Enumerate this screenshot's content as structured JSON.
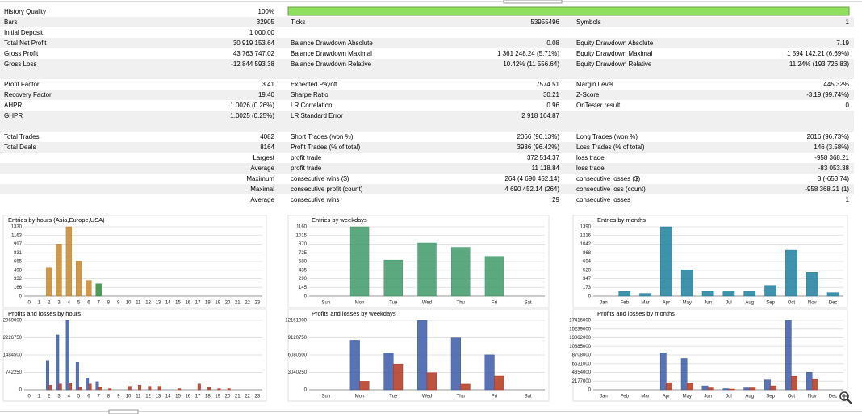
{
  "table": {
    "sections": [
      [
        [
          "History Quality",
          "100%",
          null,
          null,
          null,
          null
        ],
        [
          "Bars",
          "32905",
          "Ticks",
          "53955496",
          "Symbols",
          "1"
        ],
        [
          "Initial Deposit",
          "1 000.00",
          null,
          null,
          null,
          null
        ],
        [
          "Total Net Profit",
          "30 919 153.64",
          "Balance Drawdown Absolute",
          "0.08",
          "Equity Drawdown Absolute",
          "7.19"
        ],
        [
          "Gross Profit",
          "43 763 747.02",
          "Balance Drawdown Maximal",
          "1 361 248.24 (5.71%)",
          "Equity Drawdown Maximal",
          "1 594 142.21 (6.69%)"
        ],
        [
          "Gross Loss",
          "-12 844 593.38",
          "Balance Drawdown Relative",
          "10.42% (11 556.64)",
          "Equity Drawdown Relative",
          "11.24% (193 726.83)"
        ]
      ],
      [
        [
          "Profit Factor",
          "3.41",
          "Expected Payoff",
          "7574.51",
          "Margin Level",
          "445.32%"
        ],
        [
          "Recovery Factor",
          "19.40",
          "Sharpe Ratio",
          "30.21",
          "Z-Score",
          "-3.19 (99.74%)"
        ],
        [
          "AHPR",
          "1.0026 (0.26%)",
          "LR Correlation",
          "0.96",
          "OnTester result",
          "0"
        ],
        [
          "GHPR",
          "1.0025 (0.25%)",
          "LR Standard Error",
          "2 918 164.87",
          null,
          null
        ]
      ],
      [
        [
          "Total Trades",
          "4082",
          "Short Trades (won %)",
          "2066 (96.13%)",
          "Long Trades (won %)",
          "2016 (96.73%)"
        ],
        [
          "Total Deals",
          "8164",
          "Profit Trades (% of total)",
          "3936 (96.42%)",
          "Loss Trades (% of total)",
          "146 (3.58%)"
        ],
        [
          null,
          "Largest",
          "profit trade",
          "372 514.37",
          "loss trade",
          "-958 368.21"
        ],
        [
          null,
          "Average",
          "profit trade",
          "11 118.84",
          "loss trade",
          "-83 053.38"
        ],
        [
          null,
          "Maximum",
          "consecutive wins ($)",
          "264 (4 690 452.14)",
          "consecutive losses ($)",
          "3 (-653.74)"
        ],
        [
          null,
          "Maximal",
          "consecutive profit (count)",
          "4 690 452.14 (264)",
          "consecutive loss (count)",
          "-958 368.21 (1)"
        ],
        [
          null,
          "Average",
          "consecutive wins",
          "29",
          "consecutive losses",
          "1"
        ]
      ]
    ]
  },
  "charts": [
    {
      "title": "Entries by hours (Asia,Europe,USA)",
      "categories": [
        0,
        1,
        2,
        3,
        4,
        5,
        6,
        7,
        8,
        9,
        10,
        11,
        12,
        13,
        14,
        15,
        16,
        17,
        18,
        19,
        20,
        21,
        22,
        23
      ],
      "ylim": [
        0,
        1330
      ],
      "yticks": [
        0,
        166,
        332,
        498,
        665,
        831,
        997,
        1163,
        1330
      ],
      "series": [
        {
          "values": [
            0,
            0,
            545,
            1000,
            1330,
            670,
            300,
            235,
            0,
            0,
            0,
            0,
            0,
            0,
            0,
            0,
            0,
            0,
            0,
            0,
            0,
            0,
            0,
            0
          ],
          "colors": [
            "#c8862a",
            "#c8862a",
            "#c8862a",
            "#c8862a",
            "#c8862a",
            "#c8862a",
            "#c8862a",
            "#2e8b3a",
            "#2e8b3a",
            "#2e8b3a",
            "#2e8b3a",
            "#2e8b3a",
            "#2e8b3a",
            "#2e8b3a",
            "#2e8b3a",
            "#2e8b3a",
            "#3a5ba8",
            "#3a5ba8",
            "#3a5ba8",
            "#3a5ba8",
            "#3a5ba8",
            "#3a5ba8",
            "#3a5ba8",
            "#3a5ba8"
          ]
        }
      ]
    },
    {
      "title": "Entries by weekdays",
      "categories": [
        "Sun",
        "Mon",
        "Tue",
        "Wed",
        "Thu",
        "Fri",
        "Sat"
      ],
      "ylim": [
        0,
        1160
      ],
      "yticks": [
        0,
        145,
        290,
        435,
        580,
        725,
        870,
        1015,
        1160
      ],
      "series": [
        {
          "color": "#3f9a68",
          "values": [
            0,
            1160,
            605,
            890,
            815,
            665,
            0
          ]
        }
      ]
    },
    {
      "title": "Entries by months",
      "categories": [
        "Jan",
        "Feb",
        "Mar",
        "Apr",
        "May",
        "Jun",
        "Jul",
        "Aug",
        "Sep",
        "Oct",
        "Nov",
        "Dec"
      ],
      "ylim": [
        0,
        1390
      ],
      "yticks": [
        0,
        173,
        347,
        520,
        694,
        868,
        1042,
        1216,
        1390
      ],
      "series": [
        {
          "color": "#1d7f9c",
          "values": [
            0,
            95,
            55,
            1390,
            530,
            95,
            90,
            105,
            215,
            920,
            480,
            70
          ]
        }
      ]
    },
    {
      "title": "Profits and losses by hours",
      "categories": [
        0,
        1,
        2,
        3,
        4,
        5,
        6,
        7,
        8,
        9,
        10,
        11,
        12,
        13,
        14,
        15,
        16,
        17,
        18,
        19,
        20,
        21,
        22,
        23
      ],
      "ylim": [
        0,
        2969000
      ],
      "yticks": [
        0,
        742250,
        1484500,
        2226750,
        2969000
      ],
      "series": [
        {
          "color": "#3a5ba8",
          "values": [
            0,
            0,
            1250000,
            2350000,
            2969000,
            1200000,
            500000,
            350000,
            0,
            0,
            0,
            0,
            0,
            0,
            0,
            0,
            0,
            0,
            0,
            0,
            0,
            0,
            0,
            0
          ]
        },
        {
          "color": "#b0361f",
          "values": [
            0,
            0,
            200000,
            250000,
            300000,
            100000,
            250000,
            100000,
            50000,
            0,
            150000,
            200000,
            150000,
            150000,
            0,
            50000,
            0,
            250000,
            100000,
            50000,
            50000,
            0,
            0,
            0
          ]
        }
      ]
    },
    {
      "title": "Profits and losses by weekdays",
      "categories": [
        "Sun",
        "Mon",
        "Tue",
        "Wed",
        "Thu",
        "Fri",
        "Sat"
      ],
      "ylim": [
        0,
        12161000
      ],
      "yticks": [
        0,
        3040250,
        6080500,
        9120750,
        12161000
      ],
      "series": [
        {
          "color": "#3a5ba8",
          "values": [
            0,
            8700000,
            6400000,
            12161000,
            9100000,
            6100000,
            0
          ]
        },
        {
          "color": "#b0361f",
          "values": [
            0,
            1500000,
            4500000,
            3000000,
            1000000,
            2400000,
            0
          ]
        }
      ]
    },
    {
      "title": "Profits and losses by months",
      "categories": [
        "Jan",
        "Feb",
        "Mar",
        "Apr",
        "May",
        "Jun",
        "Jul",
        "Aug",
        "Sep",
        "Oct",
        "Nov",
        "Dec"
      ],
      "ylim": [
        0,
        17416000
      ],
      "yticks": [
        0,
        2177000,
        4354000,
        6531000,
        8708000,
        10885000,
        13062000,
        15239000,
        17416000
      ],
      "series": [
        {
          "color": "#3a5ba8",
          "values": [
            0,
            0,
            0,
            9200000,
            7800000,
            1000000,
            300000,
            500000,
            2500000,
            17416000,
            4400000,
            0
          ]
        },
        {
          "color": "#b0361f",
          "values": [
            0,
            0,
            0,
            1800000,
            1700000,
            500000,
            200000,
            500000,
            1000000,
            3400000,
            2600000,
            0
          ]
        }
      ]
    }
  ]
}
